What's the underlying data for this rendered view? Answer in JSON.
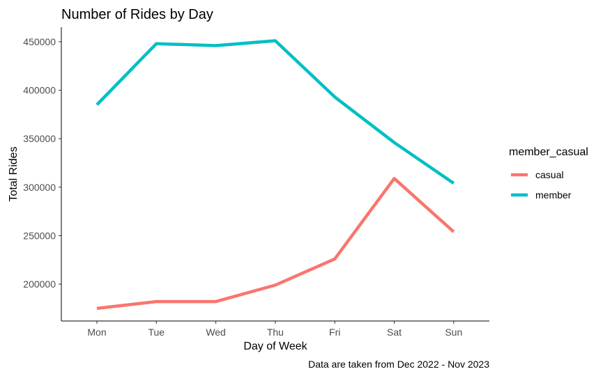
{
  "chart_data": {
    "type": "line",
    "title": "Number of Rides by Day",
    "xlabel": "Day of Week",
    "ylabel": "Total Rides",
    "caption": "Data are taken from Dec 2022 - Nov 2023",
    "categories": [
      "Mon",
      "Tue",
      "Wed",
      "Thu",
      "Fri",
      "Sat",
      "Sun"
    ],
    "y_ticks": [
      200000,
      250000,
      300000,
      350000,
      400000,
      450000
    ],
    "ylim": [
      162000,
      465000
    ],
    "grid": false,
    "legend": {
      "title": "member_casual",
      "position": "right"
    },
    "series": [
      {
        "name": "casual",
        "color": "#F8766D",
        "values": [
          175000,
          182000,
          182000,
          199000,
          226000,
          309000,
          254000
        ]
      },
      {
        "name": "member",
        "color": "#00BFC4",
        "values": [
          385000,
          448000,
          446000,
          451000,
          393000,
          346000,
          304000
        ]
      }
    ]
  }
}
